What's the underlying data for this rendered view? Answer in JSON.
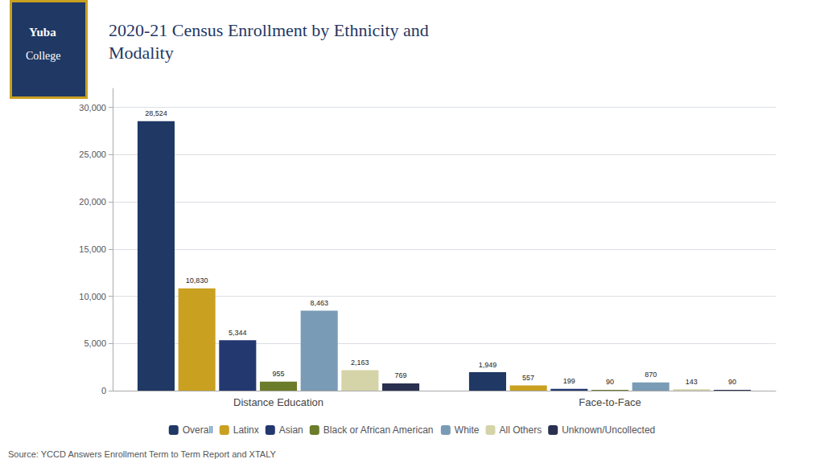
{
  "chart_data": {
    "type": "bar",
    "title": "2020-21 Census Enrollment by Ethnicity and\nModality",
    "categories": [
      "Distance Education",
      "Face-to-Face"
    ],
    "series": [
      {
        "name": "Overall",
        "color": "#1f3864",
        "values": [
          28524,
          1949
        ],
        "value_labels": [
          "28,524",
          "1,949"
        ]
      },
      {
        "name": "Latinx",
        "color": "#c9a020",
        "values": [
          10830,
          557
        ],
        "value_labels": [
          "10,830",
          "557"
        ]
      },
      {
        "name": "Asian",
        "color": "#243870",
        "values": [
          5344,
          199
        ],
        "value_labels": [
          "5,344",
          "199"
        ]
      },
      {
        "name": "Black or African American",
        "color": "#6b7c2a",
        "values": [
          955,
          90
        ],
        "value_labels": [
          "955",
          "90"
        ]
      },
      {
        "name": "White",
        "color": "#7a9bb5",
        "values": [
          8463,
          870
        ],
        "value_labels": [
          "8,463",
          "870"
        ]
      },
      {
        "name": "All Others",
        "color": "#d4d4a8",
        "values": [
          2163,
          143
        ],
        "value_labels": [
          "2,163",
          "143"
        ]
      },
      {
        "name": "Unknown/Uncollected",
        "color": "#2a3050",
        "values": [
          769,
          90
        ],
        "value_labels": [
          "769",
          "90"
        ]
      }
    ],
    "ylim": [
      0,
      32000
    ],
    "yticks": [
      0,
      {
        "value": 5000,
        "label": "5,000"
      },
      {
        "value": 10000,
        "label": "10,000"
      },
      {
        "value": 15000,
        "label": "15,000"
      },
      {
        "value": 20000,
        "label": "20,000"
      },
      {
        "value": 25000,
        "label": "25,000"
      },
      {
        "value": 30000,
        "label": "30,000"
      }
    ],
    "grid": true,
    "legend": "bottom",
    "data_labels": true,
    "annotations": [
      "Source: YCCD Answers Enrollment Term to Term Report and XTALY",
      "Yuba",
      "College"
    ]
  }
}
